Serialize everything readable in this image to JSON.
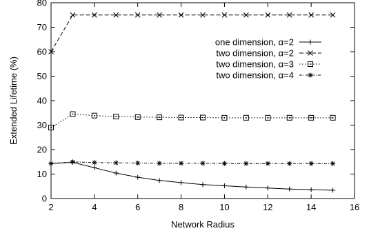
{
  "chart_data": {
    "type": "line",
    "title": "",
    "xlabel": "Network Radius",
    "ylabel": "Extended Lifetime (%)",
    "xlim": [
      2,
      16
    ],
    "ylim": [
      0,
      80
    ],
    "xticks": [
      2,
      4,
      6,
      8,
      10,
      12,
      14,
      16
    ],
    "yticks": [
      0,
      10,
      20,
      30,
      40,
      50,
      60,
      70,
      80
    ],
    "grid": false,
    "legend_position": "upper-right",
    "series": [
      {
        "name": "one dimension, α=2",
        "marker": "plus",
        "line_style": "solid",
        "x": [
          2,
          3,
          4,
          5,
          6,
          7,
          8,
          9,
          10,
          11,
          12,
          13,
          14,
          15
        ],
        "y": [
          14.3,
          14.8,
          12.6,
          10.4,
          8.7,
          7.4,
          6.5,
          5.7,
          5.2,
          4.7,
          4.3,
          3.9,
          3.6,
          3.4
        ]
      },
      {
        "name": "two dimension, α=2",
        "marker": "cross",
        "line_style": "dashed",
        "x": [
          2,
          3,
          4,
          5,
          6,
          7,
          8,
          9,
          10,
          11,
          12,
          13,
          14,
          15
        ],
        "y": [
          60,
          75,
          75,
          75,
          75,
          75,
          75,
          75,
          75,
          75,
          75,
          75,
          75,
          75
        ]
      },
      {
        "name": "two dimension, α=3",
        "marker": "square",
        "line_style": "dotted",
        "x": [
          2,
          3,
          4,
          5,
          6,
          7,
          8,
          9,
          10,
          11,
          12,
          13,
          14,
          15
        ],
        "y": [
          29,
          34.5,
          33.9,
          33.5,
          33.3,
          33.2,
          33.1,
          33.1,
          33,
          33,
          33,
          33,
          33,
          33
        ]
      },
      {
        "name": "two dimension, α=4",
        "marker": "asterisk",
        "line_style": "dashdot",
        "x": [
          2,
          3,
          4,
          5,
          6,
          7,
          8,
          9,
          10,
          11,
          12,
          13,
          14,
          15
        ],
        "y": [
          14.3,
          15,
          14.7,
          14.6,
          14.5,
          14.4,
          14.4,
          14.4,
          14.3,
          14.3,
          14.3,
          14.3,
          14.3,
          14.3
        ]
      }
    ]
  }
}
